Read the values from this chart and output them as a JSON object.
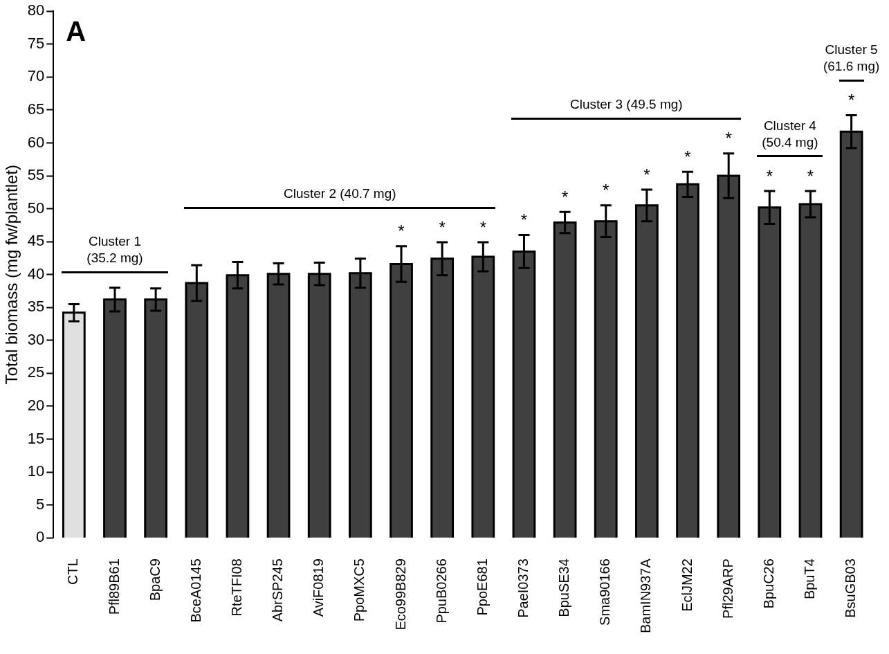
{
  "chart_data": {
    "type": "bar",
    "ylabel": "Total biomass (mg fw/plantlet)",
    "categories": [
      "CTL",
      "Pfl89B61",
      "BpaC9",
      "BceA0145",
      "RteTFI08",
      "AbrSP245",
      "AviF0819",
      "PpoMXC5",
      "Eco99B829",
      "PpuB0266",
      "PpoE681",
      "PaeI0373",
      "BpuSE34",
      "Sma90166",
      "BamIN937A",
      "EclJM22",
      "Pfl29ARP",
      "BpuC26",
      "BpuT4",
      "BsuGB03"
    ],
    "values": [
      34.2,
      36.2,
      36.2,
      38.7,
      39.9,
      40.1,
      40.1,
      40.2,
      41.6,
      42.4,
      42.7,
      43.5,
      47.9,
      48.1,
      50.5,
      53.7,
      55.0,
      50.2,
      50.7,
      61.7
    ],
    "errors": [
      1.3,
      1.8,
      1.7,
      2.7,
      2.0,
      1.6,
      1.7,
      2.2,
      2.7,
      2.5,
      2.2,
      2.5,
      1.6,
      2.4,
      2.4,
      1.9,
      3.4,
      2.5,
      2.0,
      2.5
    ],
    "colors": [
      "#e0e0e0",
      "#404040",
      "#404040",
      "#404040",
      "#404040",
      "#404040",
      "#404040",
      "#404040",
      "#404040",
      "#404040",
      "#404040",
      "#404040",
      "#404040",
      "#404040",
      "#404040",
      "#404040",
      "#404040",
      "#404040",
      "#404040",
      "#404040"
    ],
    "ylim": [
      0,
      80
    ],
    "yticks": [
      0,
      5,
      10,
      15,
      20,
      25,
      30,
      35,
      40,
      45,
      50,
      55,
      60,
      65,
      70,
      75,
      80
    ],
    "grid": false,
    "value_labels": [
      null,
      null,
      null,
      null,
      null,
      null,
      null,
      null,
      "*",
      "*",
      "*",
      "*",
      "*",
      "*",
      "*",
      "*",
      "*",
      "*",
      "*",
      "*"
    ],
    "annotations": [
      "A",
      "Cluster 1\n(35.2 mg)",
      "Cluster 2 (40.7 mg)",
      "Cluster 3 (49.5 mg)",
      "Cluster 4\n(50.4 mg)",
      "Cluster 5\n(61.6 mg)"
    ]
  }
}
